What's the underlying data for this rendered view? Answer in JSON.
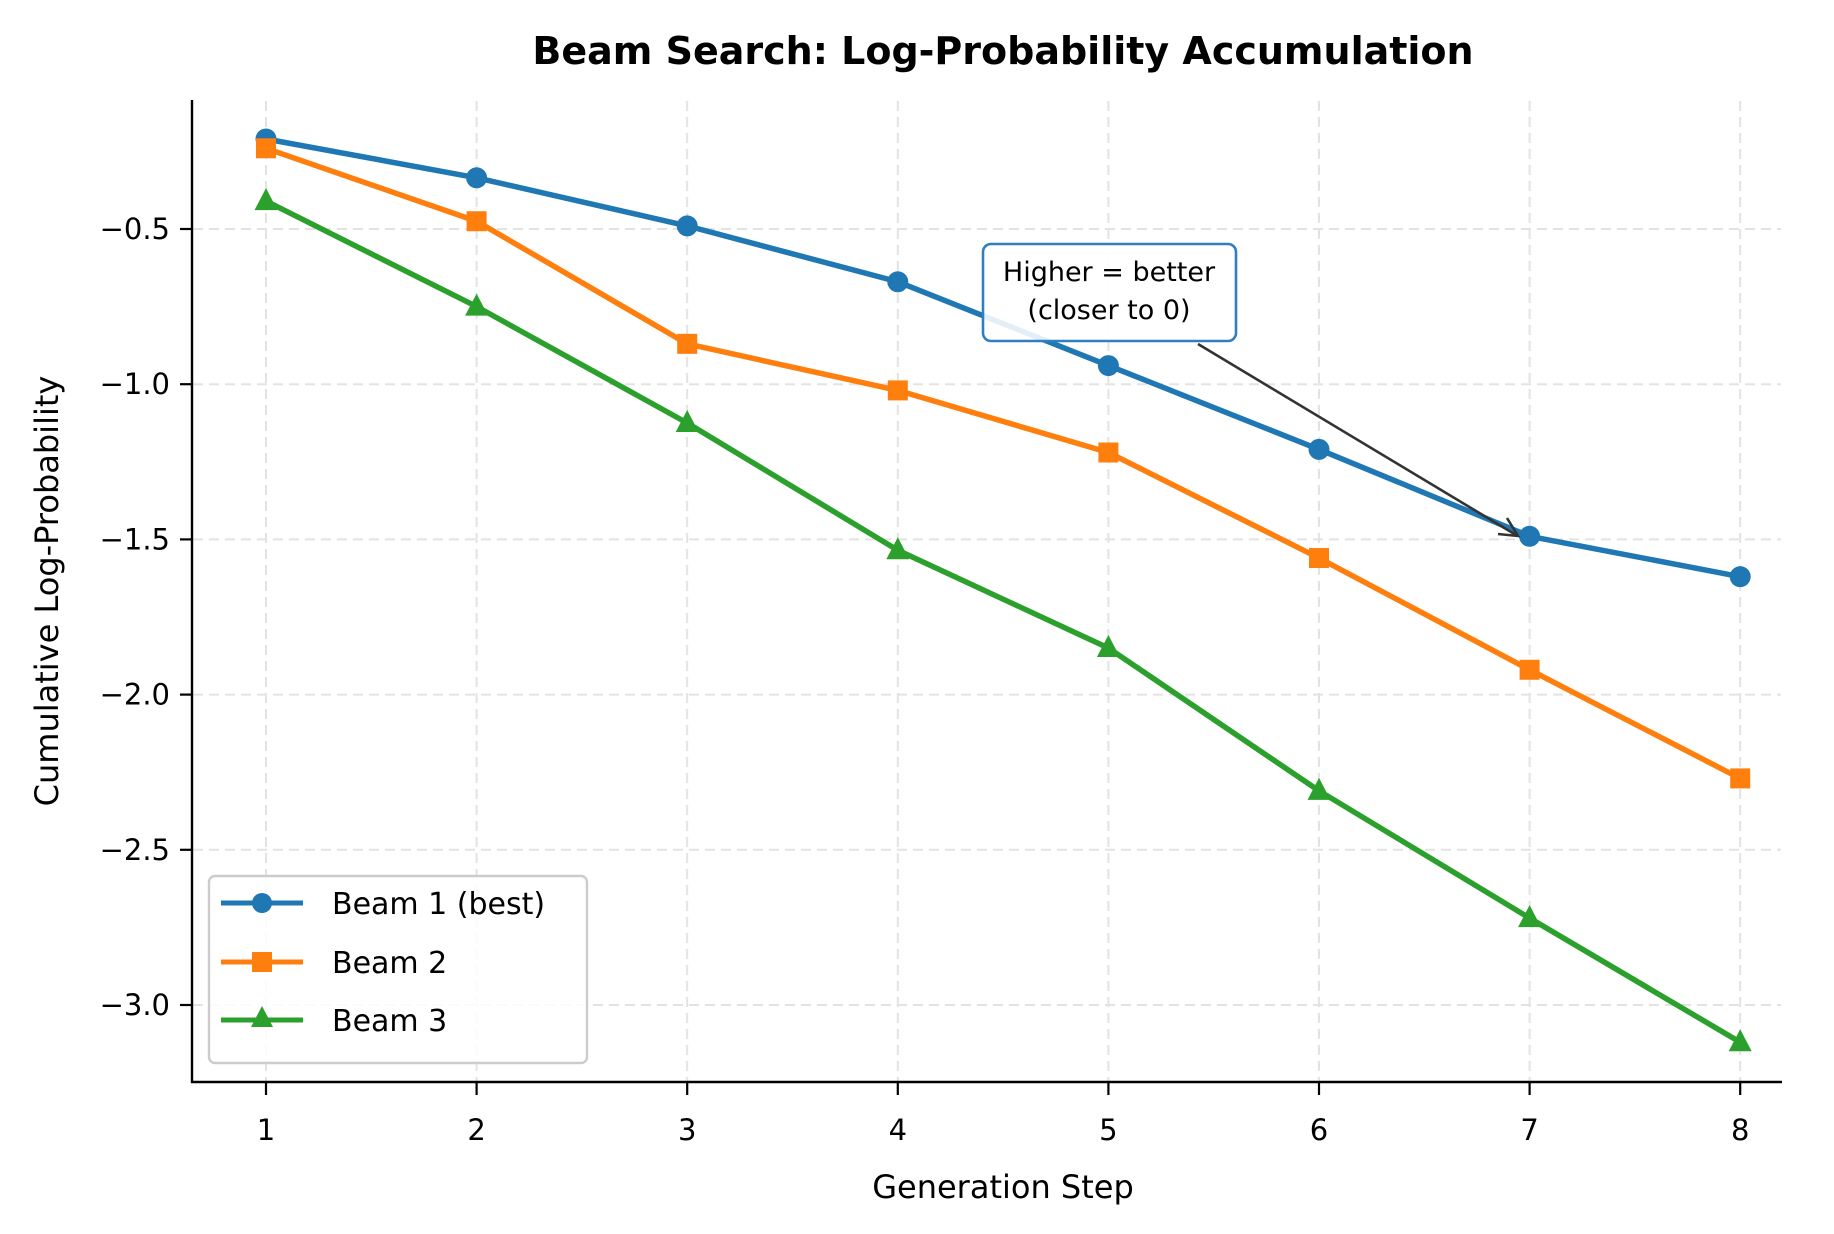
{
  "chart_data": {
    "type": "line",
    "title": "Beam Search: Log-Probability Accumulation",
    "xlabel": "Generation Step",
    "ylabel": "Cumulative Log-Probability",
    "x": [
      1,
      2,
      3,
      4,
      5,
      6,
      7,
      8
    ],
    "xticks": [
      "1",
      "2",
      "3",
      "4",
      "5",
      "6",
      "7",
      "8"
    ],
    "yticks": [
      -0.5,
      -1.0,
      -1.5,
      -2.0,
      -2.5,
      -3.0
    ],
    "ytick_labels": [
      "−0.5",
      "−1.0",
      "−1.5",
      "−2.0",
      "−2.5",
      "−3.0"
    ],
    "xlim": [
      0.65,
      8.35
    ],
    "ylim": [
      -3.25,
      -0.09
    ],
    "grid": true,
    "legend_position": "lower left",
    "series": [
      {
        "name": "Beam 1 (best)",
        "color": "#1f77b4",
        "marker": "circle",
        "values": [
          -0.21,
          -0.335,
          -0.49,
          -0.67,
          -0.94,
          -1.21,
          -1.49,
          -1.62
        ]
      },
      {
        "name": "Beam 2",
        "color": "#ff7f0e",
        "marker": "square",
        "values": [
          -0.24,
          -0.475,
          -0.87,
          -1.02,
          -1.22,
          -1.56,
          -1.92,
          -2.27
        ]
      },
      {
        "name": "Beam 3",
        "color": "#2ca02c",
        "marker": "triangle",
        "values": [
          -0.41,
          -0.75,
          -1.125,
          -1.535,
          -1.85,
          -2.31,
          -2.72,
          -3.12
        ]
      }
    ],
    "annotations": [
      {
        "text_line1": "Higher = better",
        "text_line2": "(closer to 0)",
        "arrow_to": {
          "x": 7,
          "y": -1.49
        },
        "border_color": "#1f77b4"
      }
    ]
  }
}
